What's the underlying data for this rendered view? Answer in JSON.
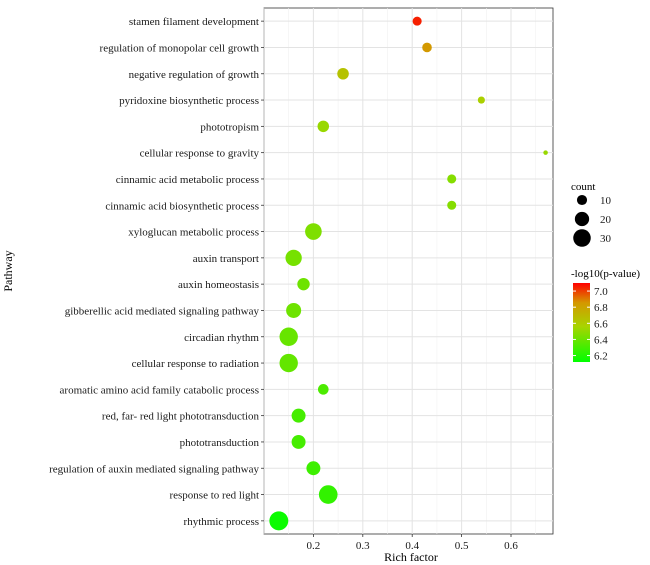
{
  "chart_data": {
    "type": "scatter",
    "xlabel": "Rich factor",
    "ylabel": "Pathway",
    "xlim": [
      0.1,
      0.685
    ],
    "xticks": [
      0.2,
      0.3,
      0.4,
      0.5,
      0.6
    ],
    "xtick_labels": [
      "0.2",
      "0.3",
      "0.4",
      "0.5",
      "0.6"
    ],
    "grid": true,
    "legend_position": "right",
    "size_legend": {
      "title": "count",
      "entries": [
        {
          "label": "10",
          "value": 10
        },
        {
          "label": "20",
          "value": 20
        },
        {
          "label": "30",
          "value": 30
        }
      ]
    },
    "color_legend": {
      "title": "-log10(p-value)",
      "min": 6.12,
      "max": 7.1,
      "ticks": [
        7.0,
        6.8,
        6.6,
        6.4,
        6.2
      ],
      "tick_labels": [
        "7.0",
        "6.8",
        "6.6",
        "6.4",
        "6.2"
      ],
      "low_color": "#00ff00",
      "high_color": "#ff0000"
    },
    "points": [
      {
        "pathway": "stamen filament development",
        "x": 0.41,
        "count": 8,
        "neglogp": 7.05
      },
      {
        "pathway": "regulation of monopolar cell growth",
        "x": 0.43,
        "count": 9,
        "neglogp": 6.85
      },
      {
        "pathway": "negative regulation of growth",
        "x": 0.26,
        "count": 13,
        "neglogp": 6.65
      },
      {
        "pathway": "pyridoxine biosynthetic process",
        "x": 0.54,
        "count": 5,
        "neglogp": 6.58
      },
      {
        "pathway": "phototropism",
        "x": 0.22,
        "count": 13,
        "neglogp": 6.52
      },
      {
        "pathway": "cellular response to gravity",
        "x": 0.67,
        "count": 2,
        "neglogp": 6.52
      },
      {
        "pathway": "cinnamic acid metabolic process",
        "x": 0.48,
        "count": 8,
        "neglogp": 6.47
      },
      {
        "pathway": "cinnamic acid biosynthetic process",
        "x": 0.48,
        "count": 8,
        "neglogp": 6.47
      },
      {
        "pathway": "xyloglucan metabolic process",
        "x": 0.2,
        "count": 27,
        "neglogp": 6.45
      },
      {
        "pathway": "auxin transport",
        "x": 0.16,
        "count": 26,
        "neglogp": 6.43
      },
      {
        "pathway": "auxin homeostasis",
        "x": 0.18,
        "count": 15,
        "neglogp": 6.41
      },
      {
        "pathway": "gibberellic acid mediated signaling pathway",
        "x": 0.16,
        "count": 22,
        "neglogp": 6.41
      },
      {
        "pathway": "circadian rhythm",
        "x": 0.15,
        "count": 33,
        "neglogp": 6.39
      },
      {
        "pathway": "cellular response to radiation",
        "x": 0.15,
        "count": 33,
        "neglogp": 6.38
      },
      {
        "pathway": "aromatic amino acid family catabolic process",
        "x": 0.22,
        "count": 11,
        "neglogp": 6.32
      },
      {
        "pathway": "red, far- red light phototransduction",
        "x": 0.17,
        "count": 19,
        "neglogp": 6.3
      },
      {
        "pathway": "phototransduction",
        "x": 0.17,
        "count": 19,
        "neglogp": 6.3
      },
      {
        "pathway": "regulation of auxin mediated signaling pathway",
        "x": 0.2,
        "count": 19,
        "neglogp": 6.28
      },
      {
        "pathway": "response to red light",
        "x": 0.23,
        "count": 34,
        "neglogp": 6.25
      },
      {
        "pathway": "rhythmic process",
        "x": 0.13,
        "count": 35,
        "neglogp": 6.15
      }
    ]
  }
}
